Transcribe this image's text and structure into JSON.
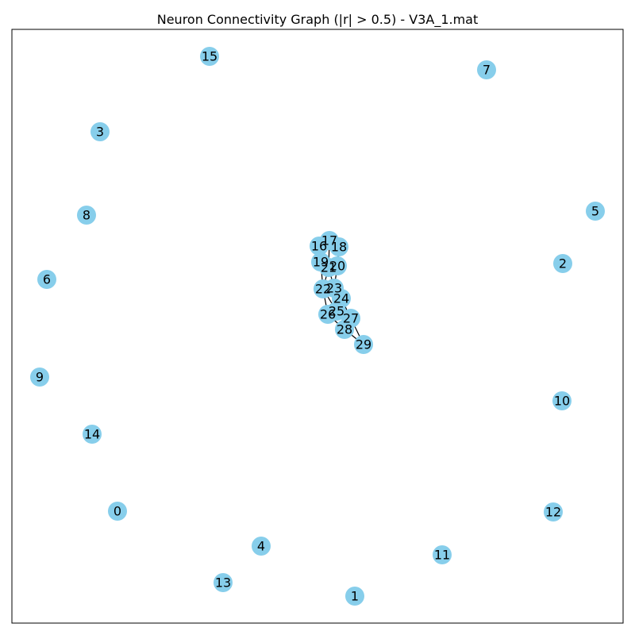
{
  "title": "Neuron Connectivity Graph (|r| > 0.5) - V3A_1.mat",
  "colors": {
    "node_fill": "#87ceeb",
    "edge": "#000000",
    "frame": "#000000",
    "background": "#ffffff"
  },
  "graph": {
    "nodes": [
      "0",
      "1",
      "2",
      "3",
      "4",
      "5",
      "6",
      "7",
      "8",
      "9",
      "10",
      "11",
      "12",
      "13",
      "14",
      "15",
      "16",
      "17",
      "18",
      "19",
      "20",
      "21",
      "22",
      "23",
      "24",
      "25",
      "26",
      "27",
      "28",
      "29"
    ],
    "edges": [
      [
        "16",
        "17"
      ],
      [
        "17",
        "18"
      ],
      [
        "16",
        "19"
      ],
      [
        "17",
        "21"
      ],
      [
        "18",
        "20"
      ],
      [
        "19",
        "21"
      ],
      [
        "20",
        "21"
      ],
      [
        "19",
        "22"
      ],
      [
        "21",
        "22"
      ],
      [
        "21",
        "23"
      ],
      [
        "20",
        "23"
      ],
      [
        "22",
        "23"
      ],
      [
        "22",
        "25"
      ],
      [
        "23",
        "24"
      ],
      [
        "23",
        "25"
      ],
      [
        "24",
        "25"
      ],
      [
        "22",
        "26"
      ],
      [
        "25",
        "26"
      ],
      [
        "24",
        "27"
      ],
      [
        "25",
        "27"
      ],
      [
        "26",
        "28"
      ],
      [
        "27",
        "28"
      ],
      [
        "28",
        "29"
      ],
      [
        "27",
        "29"
      ]
    ]
  }
}
